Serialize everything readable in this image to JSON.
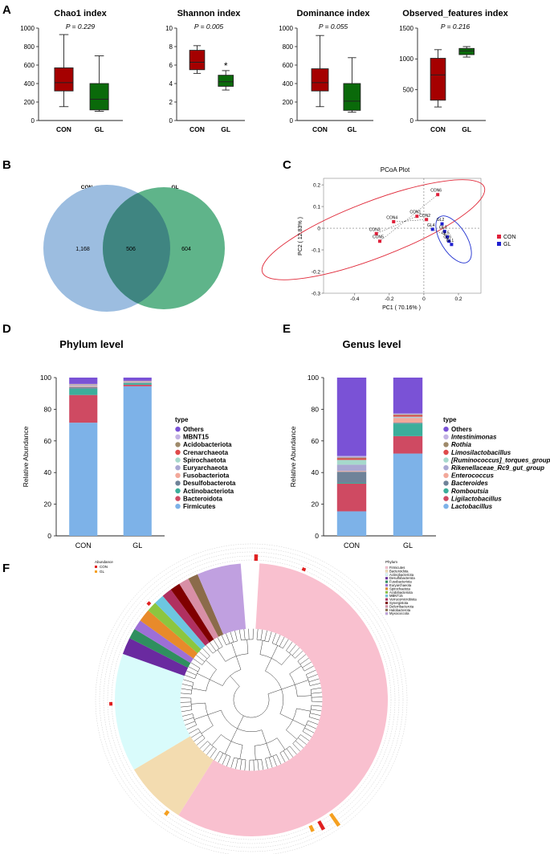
{
  "panel_letters": [
    "A",
    "B",
    "C",
    "D",
    "E",
    "F"
  ],
  "colors": {
    "con_box": "#a50000",
    "gl_box": "#0a6a0a",
    "venn_con": "#8fb3d9",
    "venn_gl": "#4aa97c",
    "venn_overlap": "#3b7f7c",
    "pcoa_con": "#e0203a",
    "pcoa_gl": "#2020d0"
  },
  "chart_data": [
    {
      "type": "box",
      "title": "Chao1 index",
      "pvalue": "P = 0.229",
      "categories": [
        "CON",
        "GL"
      ],
      "yticks": [
        "0",
        "200",
        "400",
        "600",
        "800",
        "1000"
      ],
      "ylim": [
        0,
        1000
      ],
      "boxes": [
        {
          "group": "CON",
          "min": 150,
          "q1": 320,
          "median": 410,
          "q3": 570,
          "max": 930
        },
        {
          "group": "GL",
          "min": 100,
          "q1": 115,
          "median": 230,
          "q3": 400,
          "max": 700
        }
      ],
      "star": ""
    },
    {
      "type": "box",
      "title": "Shannon index",
      "pvalue": "P = 0.005",
      "categories": [
        "CON",
        "GL"
      ],
      "yticks": [
        "0",
        "2",
        "4",
        "6",
        "8",
        "10"
      ],
      "ylim": [
        0,
        10
      ],
      "boxes": [
        {
          "group": "CON",
          "min": 5.1,
          "q1": 5.5,
          "median": 6.3,
          "q3": 7.6,
          "max": 8.1
        },
        {
          "group": "GL",
          "min": 3.3,
          "q1": 3.7,
          "median": 4.2,
          "q3": 4.9,
          "max": 5.4
        }
      ],
      "star": "*"
    },
    {
      "type": "box",
      "title": "Dominance index",
      "pvalue": "P = 0.055",
      "categories": [
        "CON",
        "GL"
      ],
      "yticks": [
        "0",
        "200",
        "400",
        "600",
        "800",
        "1000"
      ],
      "ylim": [
        0,
        1000
      ],
      "boxes": [
        {
          "group": "CON",
          "min": 150,
          "q1": 320,
          "median": 410,
          "q3": 560,
          "max": 920
        },
        {
          "group": "GL",
          "min": 90,
          "q1": 110,
          "median": 210,
          "q3": 400,
          "max": 680
        }
      ],
      "star": ""
    },
    {
      "type": "box",
      "title": "Observed_features index",
      "pvalue": "P = 0.216",
      "categories": [
        "CON",
        "GL"
      ],
      "yticks": [
        "0",
        "500",
        "1000",
        "1500"
      ],
      "ylim": [
        0,
        1500
      ],
      "boxes": [
        {
          "group": "CON",
          "min": 220,
          "q1": 330,
          "median": 740,
          "q3": 1010,
          "max": 1150
        },
        {
          "group": "GL",
          "min": 1030,
          "q1": 1070,
          "median": 1130,
          "q3": 1170,
          "max": 1200
        }
      ],
      "star": ""
    },
    {
      "type": "venn",
      "sets": [
        "CON",
        "GL"
      ],
      "counts": {
        "only_con": "1,168",
        "shared": "506",
        "only_gl": "604"
      }
    },
    {
      "type": "scatter",
      "title": "PCoA Plot",
      "xlabel": "PC1 ( 70.16% )",
      "ylabel": "PC2 ( 12.83% )",
      "xticks": [
        "-0.4",
        "-0.2",
        "0",
        "0.2"
      ],
      "xtick_values": [
        -0.4,
        -0.2,
        0,
        0.2
      ],
      "yticks": [
        "0.2",
        "0.1",
        "0",
        "-0.1",
        "-0.2",
        "-0.3"
      ],
      "ytick_values": [
        0.2,
        0.1,
        0,
        -0.1,
        -0.2,
        -0.3
      ],
      "xlim": [
        -0.58,
        0.33
      ],
      "ylim": [
        -0.3,
        0.23
      ],
      "legend": [
        "CON",
        "GL"
      ],
      "points": [
        {
          "label": "CON6",
          "group": "CON",
          "x": 0.08,
          "y": 0.155
        },
        {
          "label": "CON1",
          "group": "CON",
          "x": -0.04,
          "y": 0.055
        },
        {
          "label": "CON2",
          "group": "CON",
          "x": 0.015,
          "y": 0.04
        },
        {
          "label": "CON4",
          "group": "CON",
          "x": -0.175,
          "y": 0.03
        },
        {
          "label": "CON3",
          "group": "CON",
          "x": -0.275,
          "y": -0.025
        },
        {
          "label": "CON5",
          "group": "CON",
          "x": -0.255,
          "y": -0.06
        },
        {
          "label": "GL2",
          "group": "GL",
          "x": 0.105,
          "y": 0.02
        },
        {
          "label": "GL4",
          "group": "GL",
          "x": 0.05,
          "y": -0.005
        },
        {
          "label": "GL3",
          "group": "GL",
          "x": 0.12,
          "y": -0.015
        },
        {
          "label": "GL5",
          "group": "GL",
          "x": 0.135,
          "y": -0.04
        },
        {
          "label": "GL6",
          "group": "GL",
          "x": 0.145,
          "y": -0.06
        },
        {
          "label": "GL1",
          "group": "GL",
          "x": 0.16,
          "y": -0.075
        }
      ]
    },
    {
      "type": "stacked_bar",
      "title": "Phylum level",
      "ylabel": "Relative Abundance",
      "categories": [
        "CON",
        "GL"
      ],
      "yticks": [
        "0",
        "20",
        "40",
        "60",
        "80",
        "100"
      ],
      "ylim": [
        0,
        100
      ],
      "legend_title": "type",
      "series": [
        {
          "name": "Firmicutes",
          "color": "#7db2e8",
          "values": [
            71.5,
            94.5
          ]
        },
        {
          "name": "Bacteroidota",
          "color": "#cf4a62",
          "values": [
            17.5,
            1.0
          ]
        },
        {
          "name": "Actinobacteriota",
          "color": "#3cae9b",
          "values": [
            4.0,
            1.0
          ]
        },
        {
          "name": "Desulfobacterota",
          "color": "#6f8399",
          "values": [
            1.0,
            0.3
          ]
        },
        {
          "name": "Fusobacteriota",
          "color": "#f2a89a",
          "values": [
            0.5,
            0.2
          ]
        },
        {
          "name": "Euryarchaeota",
          "color": "#a9a8d2",
          "values": [
            0.5,
            0.2
          ]
        },
        {
          "name": "Spirochaetota",
          "color": "#a6d9cc",
          "values": [
            0.3,
            0.2
          ]
        },
        {
          "name": "Crenarchaeota",
          "color": "#df4b4b",
          "values": [
            0.2,
            0.2
          ]
        },
        {
          "name": "Acidobacteriota",
          "color": "#9e8a6a",
          "values": [
            0.2,
            0.2
          ]
        },
        {
          "name": "MBNT15",
          "color": "#c3b3e3",
          "values": [
            0.3,
            0.2
          ]
        },
        {
          "name": "Others",
          "color": "#7a52d6",
          "values": [
            4.0,
            2.0
          ]
        }
      ]
    },
    {
      "type": "stacked_bar",
      "title": "Genus level",
      "ylabel": "Relative Abundance",
      "categories": [
        "CON",
        "GL"
      ],
      "yticks": [
        "0",
        "20",
        "40",
        "60",
        "80",
        "100"
      ],
      "ylim": [
        0,
        100
      ],
      "legend_title": "type",
      "series": [
        {
          "name": "Lactobacillus",
          "color": "#7db2e8",
          "values": [
            15.5,
            52.0
          ]
        },
        {
          "name": "Ligilactobacillus",
          "color": "#cf4a62",
          "values": [
            17.5,
            11.0
          ]
        },
        {
          "name": "Romboutsia",
          "color": "#3cae9b",
          "values": [
            0.5,
            8.0
          ]
        },
        {
          "name": "Bacteroides",
          "color": "#6f8399",
          "values": [
            7.0,
            0.5
          ]
        },
        {
          "name": "Enterococcus",
          "color": "#f2a89a",
          "values": [
            0.5,
            3.0
          ]
        },
        {
          "name": "Rikenellaceae_Rc9_gut_group",
          "color": "#a9a8d2",
          "values": [
            4.0,
            0.3
          ]
        },
        {
          "name": "[Ruminococcus]_torques_group",
          "color": "#a6d9cc",
          "values": [
            3.0,
            0.5
          ]
        },
        {
          "name": "Limosilactobacillus",
          "color": "#df4b4b",
          "values": [
            1.0,
            1.0
          ]
        },
        {
          "name": "Rothia",
          "color": "#9e8a6a",
          "values": [
            0.5,
            0.5
          ]
        },
        {
          "name": "Intestinimonas",
          "color": "#c3b3e3",
          "values": [
            1.0,
            0.5
          ]
        },
        {
          "name": "Others",
          "color": "#7a52d6",
          "values": [
            49.5,
            22.7
          ]
        }
      ]
    },
    {
      "type": "circular_tree",
      "abundance_legend": {
        "title": "Abundance",
        "items": [
          "CON",
          "GL"
        ]
      },
      "phylum_legend": {
        "title": "Phylum",
        "items": [
          "Firmicutes",
          "Bacteroidota",
          "Actinobacteriota",
          "Desulfobacterota",
          "Fusobacteriota",
          "Euryarchaeota",
          "Spirochaetota",
          "Acidobacteriota",
          "MBNT15",
          "Verrucomicrobiota",
          "Synergistota",
          "Deferribacterota",
          "Halobacterota",
          "Myxococcota"
        ]
      },
      "sectors": [
        {
          "phylum": "Firmicutes",
          "color": "#f9c0cf",
          "fraction": 0.58
        },
        {
          "phylum": "Bacteroidota",
          "color": "#f3dcb0",
          "fraction": 0.075
        },
        {
          "phylum": "Actinobacteriota",
          "color": "#d9fbfb",
          "fraction": 0.14
        },
        {
          "phylum": "Desulfobacterota",
          "color": "#6a2aa0",
          "fraction": 0.02
        },
        {
          "phylum": "Fusobacteriota",
          "color": "#2f8f5f",
          "fraction": 0.012
        },
        {
          "phylum": "Euryarchaeota",
          "color": "#9d6fd6",
          "fraction": 0.012
        },
        {
          "phylum": "Spirochaetota",
          "color": "#e88a2a",
          "fraction": 0.015
        },
        {
          "phylum": "Acidobacteriota",
          "color": "#8cc63f",
          "fraction": 0.012
        },
        {
          "phylum": "MBNT15",
          "color": "#6dc6e0",
          "fraction": 0.012
        },
        {
          "phylum": "Verrucomicrobiota",
          "color": "#b03060",
          "fraction": 0.012
        },
        {
          "phylum": "Synergistota",
          "color": "#800000",
          "fraction": 0.012
        },
        {
          "phylum": "Deferribacterota",
          "color": "#d88fa6",
          "fraction": 0.012
        },
        {
          "phylum": "Halobacterota",
          "color": "#8b6b4a",
          "fraction": 0.012
        },
        {
          "phylum": "Myxococcota",
          "color": "#c0a0e0",
          "fraction": 0.052
        }
      ]
    }
  ]
}
